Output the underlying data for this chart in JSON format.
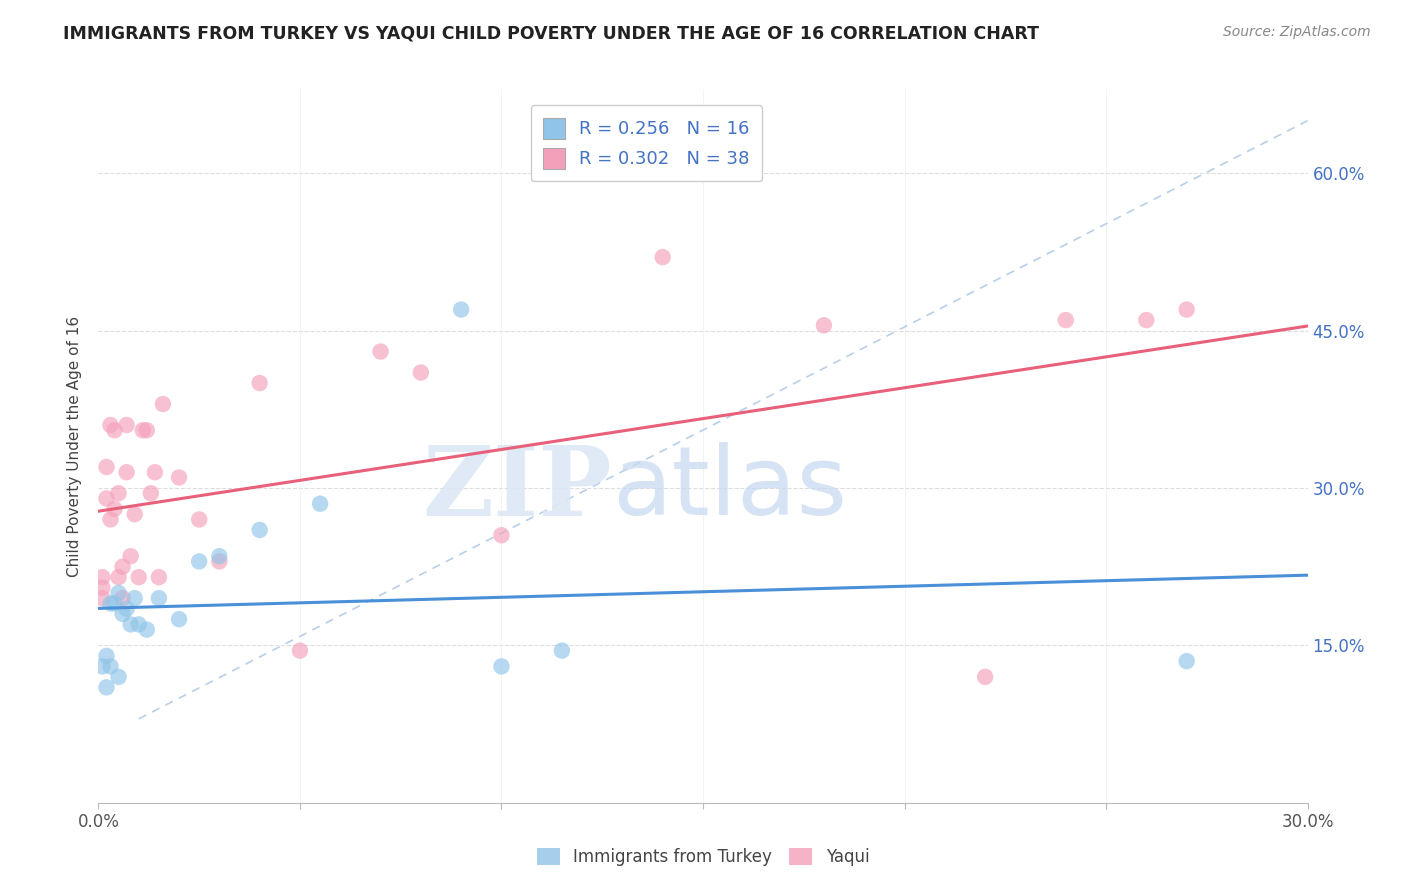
{
  "title": "IMMIGRANTS FROM TURKEY VS YAQUI CHILD POVERTY UNDER THE AGE OF 16 CORRELATION CHART",
  "source": "Source: ZipAtlas.com",
  "ylabel": "Child Poverty Under the Age of 16",
  "xlim": [
    0.0,
    0.3
  ],
  "ylim": [
    0.0,
    0.68
  ],
  "x_ticks": [
    0.0,
    0.05,
    0.1,
    0.15,
    0.2,
    0.25,
    0.3
  ],
  "y_ticks": [
    0.15,
    0.3,
    0.45,
    0.6
  ],
  "y_tick_labels": [
    "15.0%",
    "30.0%",
    "45.0%",
    "60.0%"
  ],
  "blue_color": "#90c4e8",
  "pink_color": "#f4a0bb",
  "blue_line_color": "#4a90d9",
  "pink_line_color": "#e8607a",
  "dashed_line_color": "#b8cfe8",
  "turkey_x": [
    0.001,
    0.002,
    0.002,
    0.003,
    0.003,
    0.004,
    0.005,
    0.005,
    0.006,
    0.007,
    0.008,
    0.009,
    0.01,
    0.012,
    0.015,
    0.02,
    0.025,
    0.03,
    0.04,
    0.055,
    0.09,
    0.1,
    0.115,
    0.27
  ],
  "turkey_y": [
    0.13,
    0.11,
    0.14,
    0.13,
    0.19,
    0.19,
    0.12,
    0.2,
    0.18,
    0.185,
    0.17,
    0.195,
    0.17,
    0.165,
    0.195,
    0.175,
    0.23,
    0.235,
    0.26,
    0.285,
    0.47,
    0.13,
    0.145,
    0.135
  ],
  "yaqui_x": [
    0.001,
    0.001,
    0.001,
    0.002,
    0.002,
    0.003,
    0.003,
    0.004,
    0.004,
    0.005,
    0.005,
    0.006,
    0.006,
    0.007,
    0.007,
    0.008,
    0.009,
    0.01,
    0.011,
    0.012,
    0.013,
    0.014,
    0.015,
    0.016,
    0.02,
    0.025,
    0.03,
    0.04,
    0.05,
    0.07,
    0.08,
    0.1,
    0.14,
    0.18,
    0.22,
    0.24,
    0.26,
    0.27
  ],
  "yaqui_y": [
    0.195,
    0.205,
    0.215,
    0.29,
    0.32,
    0.27,
    0.36,
    0.28,
    0.355,
    0.215,
    0.295,
    0.195,
    0.225,
    0.315,
    0.36,
    0.235,
    0.275,
    0.215,
    0.355,
    0.355,
    0.295,
    0.315,
    0.215,
    0.38,
    0.31,
    0.27,
    0.23,
    0.4,
    0.145,
    0.43,
    0.41,
    0.255,
    0.52,
    0.455,
    0.12,
    0.46,
    0.46,
    0.47
  ],
  "figsize": [
    14.06,
    8.92
  ],
  "dpi": 100
}
